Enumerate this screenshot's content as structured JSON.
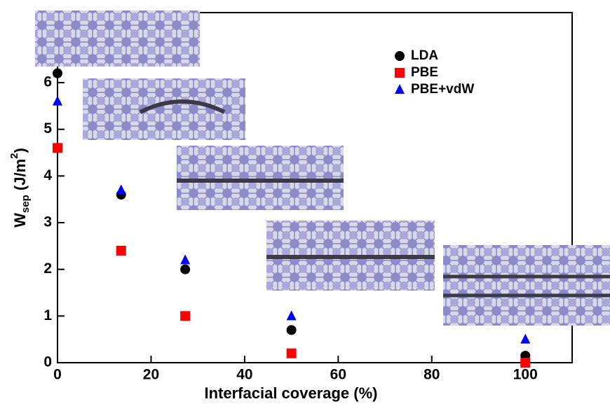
{
  "chart_data": {
    "type": "scatter",
    "x_label": "Interfacial coverage (%)",
    "y_label": [
      "W",
      "sep",
      " (J/m",
      "2",
      ")"
    ],
    "xlim": [
      0,
      110
    ],
    "xticks": [
      0,
      20,
      40,
      60,
      80,
      100
    ],
    "ylim": [
      0,
      7.5
    ],
    "yticks": [
      0,
      1,
      2,
      3,
      4,
      5,
      6
    ],
    "legend": "upper right",
    "series": [
      {
        "name": "LDA",
        "color": "#000000",
        "marker": "circle",
        "x": [
          0,
          13.6,
          27.3,
          50,
          100
        ],
        "values": [
          6.2,
          3.6,
          2.0,
          0.7,
          0.15
        ]
      },
      {
        "name": "PBE",
        "color": "#ff0000",
        "marker": "square",
        "x": [
          0,
          13.6,
          27.3,
          50,
          100
        ],
        "values": [
          4.6,
          2.4,
          1.0,
          0.2,
          0.0
        ]
      },
      {
        "name": "PBE+vdW",
        "color": "#0000ff",
        "marker": "triangle",
        "x": [
          0,
          13.6,
          27.3,
          50,
          100
        ],
        "values": [
          5.6,
          3.7,
          2.2,
          1.0,
          0.5
        ]
      }
    ]
  }
}
